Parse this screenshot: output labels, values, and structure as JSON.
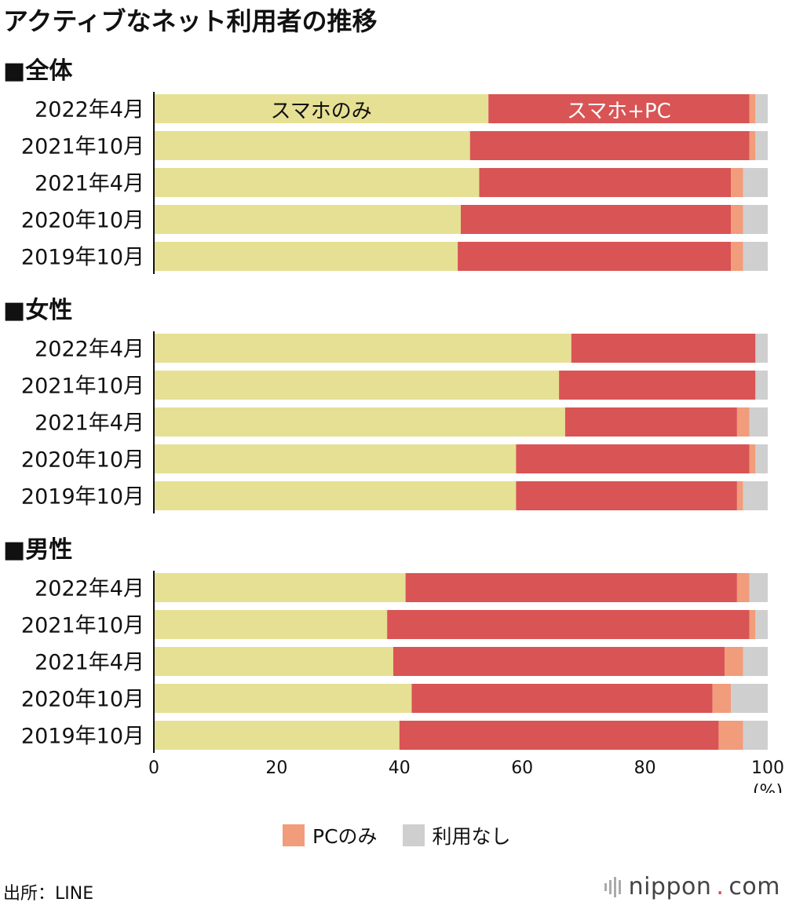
{
  "title": "アクティブなネット利用者の推移",
  "chart_data": {
    "type": "bar",
    "orientation": "horizontal",
    "stacked": true,
    "xlim": [
      0,
      100
    ],
    "xticks": [
      0,
      20,
      40,
      60,
      80,
      100
    ],
    "xunit": "(%)",
    "series_names": [
      "スマホのみ",
      "スマホ+PC",
      "PCのみ",
      "利用なし"
    ],
    "colors": [
      "#e6e094",
      "#d95455",
      "#f19c7a",
      "#cfcfcf"
    ],
    "groups": [
      {
        "label": "■全体",
        "categories": [
          "2022年4月",
          "2021年10月",
          "2021年4月",
          "2020年10月",
          "2019年10月"
        ],
        "series": [
          {
            "name": "スマホのみ",
            "values": [
              54.5,
              51.5,
              53,
              50,
              49.5
            ]
          },
          {
            "name": "スマホ+PC",
            "values": [
              42.5,
              45.5,
              41,
              44,
              44.5
            ]
          },
          {
            "name": "PCのみ",
            "values": [
              1,
              1,
              2,
              2,
              2
            ]
          },
          {
            "name": "利用なし",
            "values": [
              2,
              2,
              4,
              4,
              4
            ]
          }
        ]
      },
      {
        "label": "■女性",
        "categories": [
          "2022年4月",
          "2021年10月",
          "2021年4月",
          "2020年10月",
          "2019年10月"
        ],
        "series": [
          {
            "name": "スマホのみ",
            "values": [
              68,
              66,
              67,
              59,
              59
            ]
          },
          {
            "name": "スマホ+PC",
            "values": [
              30,
              32,
              28,
              38,
              36
            ]
          },
          {
            "name": "PCのみ",
            "values": [
              0,
              0,
              2,
              1,
              1
            ]
          },
          {
            "name": "利用なし",
            "values": [
              2,
              2,
              3,
              2,
              4
            ]
          }
        ]
      },
      {
        "label": "■男性",
        "categories": [
          "2022年4月",
          "2021年10月",
          "2021年4月",
          "2020年10月",
          "2019年10月"
        ],
        "series": [
          {
            "name": "スマホのみ",
            "values": [
              41,
              38,
              39,
              42,
              40
            ]
          },
          {
            "name": "スマホ+PC",
            "values": [
              54,
              59,
              54,
              49,
              52
            ]
          },
          {
            "name": "PCのみ",
            "values": [
              2,
              1,
              3,
              3,
              4
            ]
          },
          {
            "name": "利用なし",
            "values": [
              3,
              2,
              4,
              6,
              4
            ]
          }
        ]
      }
    ],
    "inline_labels": [
      "スマホのみ",
      "スマホ+PC"
    ],
    "legend": [
      "PCのみ",
      "利用なし"
    ]
  },
  "source": "出所：LINE",
  "logo": {
    "name": "nippon",
    "dot": ".",
    "suffix": "com"
  }
}
